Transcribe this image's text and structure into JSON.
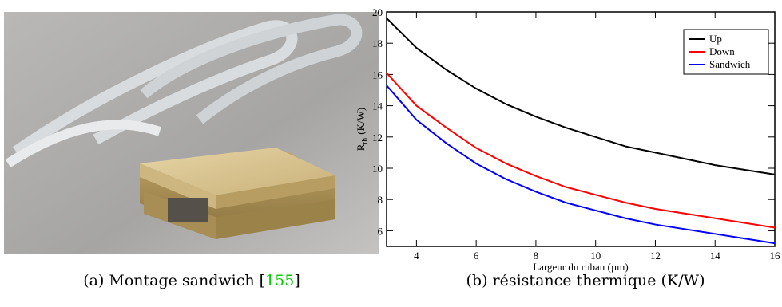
{
  "caption_a": [
    "(a) Montage sandwich [",
    "155",
    "]"
  ],
  "caption_b": "(b) résistance thermique (K/W)",
  "chart_data": {
    "type": "line",
    "xlabel": "Largeur du ruban (µm)",
    "ylabel": {
      "main": "R",
      "sub": "th",
      "unit": "(K/W)"
    },
    "x": [
      3,
      4,
      5,
      6,
      7,
      8,
      9,
      10,
      11,
      12,
      13,
      14,
      15,
      16
    ],
    "series": [
      {
        "name": "Up",
        "color": "#000000",
        "values": [
          19.6,
          17.7,
          16.3,
          15.1,
          14.1,
          13.3,
          12.6,
          12.0,
          11.4,
          11.0,
          10.6,
          10.2,
          9.9,
          9.6
        ]
      },
      {
        "name": "Down",
        "color": "#ff0000",
        "values": [
          16.1,
          14.0,
          12.6,
          11.3,
          10.3,
          9.5,
          8.8,
          8.3,
          7.8,
          7.4,
          7.1,
          6.8,
          6.5,
          6.2
        ]
      },
      {
        "name": "Sandwich",
        "color": "#0000ff",
        "values": [
          15.3,
          13.1,
          11.6,
          10.3,
          9.3,
          8.5,
          7.8,
          7.3,
          6.8,
          6.4,
          6.1,
          5.8,
          5.5,
          5.2
        ]
      }
    ],
    "xlim": [
      3,
      16
    ],
    "xticks": [
      4,
      6,
      8,
      10,
      12,
      14,
      16
    ],
    "ylim": [
      5,
      20
    ],
    "yticks": [
      6,
      8,
      10,
      12,
      14,
      16,
      18,
      20
    ],
    "legend": "top-right"
  }
}
